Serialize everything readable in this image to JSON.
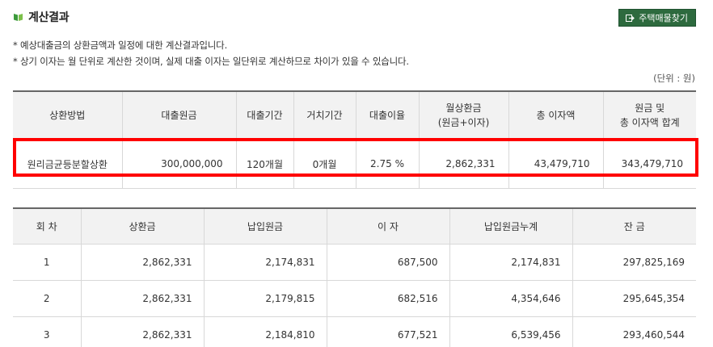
{
  "header": {
    "title": "계산결과",
    "button_label": "주택매물찾기"
  },
  "notes": [
    "* 예상대출금의 상환금액과 일정에 대한 계산결과입니다.",
    "* 상기 이자는 월 단위로 계산한 것이며, 실제 대출 이자는 일단위로 계산하므로 차이가 있을 수 있습니다."
  ],
  "unit": "(단위 : 원)",
  "summary": {
    "headers": {
      "method": "상환방법",
      "principal": "대출원금",
      "period": "대출기간",
      "grace": "거치기간",
      "rate": "대출이율",
      "monthly_1": "월상환금",
      "monthly_2": "(원금+이자)",
      "interest": "총 이자액",
      "total_1": "원금 및",
      "total_2": "총 이자액 합계"
    },
    "row": {
      "method": "원리금균등분할상환",
      "principal": "300,000,000",
      "period": "120개월",
      "grace": "0개월",
      "rate": "2.75 %",
      "monthly": "2,862,331",
      "interest": "43,479,710",
      "total": "343,479,710"
    }
  },
  "schedule": {
    "headers": [
      "회 차",
      "상환금",
      "납입원금",
      "이 자",
      "납입원금누계",
      "잔 금"
    ],
    "rows": [
      [
        "1",
        "2,862,331",
        "2,174,831",
        "687,500",
        "2,174,831",
        "297,825,169"
      ],
      [
        "2",
        "2,862,331",
        "2,179,815",
        "682,516",
        "4,354,646",
        "295,645,354"
      ],
      [
        "3",
        "2,862,331",
        "2,184,810",
        "677,521",
        "6,539,456",
        "293,460,544"
      ]
    ]
  },
  "colors": {
    "button_bg": "#2d6a3e",
    "highlight": "#ff0000",
    "header_bg": "#f2f2f2"
  },
  "icons": {
    "title_icon": "book-icon",
    "button_icon": "external-link-icon"
  }
}
